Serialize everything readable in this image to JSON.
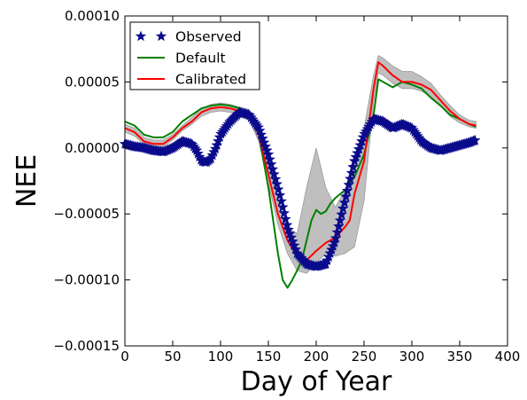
{
  "chart_data": {
    "type": "line",
    "title": "",
    "xlabel": "Day of Year",
    "ylabel": "NEE",
    "xlim": [
      0,
      400
    ],
    "ylim": [
      -0.00015,
      0.0001
    ],
    "x_ticks": [
      0,
      50,
      100,
      150,
      200,
      250,
      300,
      350,
      400
    ],
    "x_tick_labels": [
      "0",
      "50",
      "100",
      "150",
      "200",
      "250",
      "300",
      "350",
      "400"
    ],
    "y_ticks": [
      -0.00015,
      -0.0001,
      -5e-05,
      0,
      5e-05,
      0.0001
    ],
    "y_tick_labels": [
      "−0.00015",
      "−0.00010",
      "−0.00005",
      "0.00000",
      "0.00005",
      "0.00010"
    ],
    "grid": false,
    "legend": {
      "position": "top-left",
      "entries": [
        "Observed",
        "Default",
        "Calibrated"
      ]
    },
    "colors": {
      "observed": "#0a0a8c",
      "default": "#008000",
      "calibrated": "#ff0000",
      "band": "#bfbfbf",
      "band_edge": "#9a9a9a"
    },
    "series": [
      {
        "name": "Observed",
        "marker": "star",
        "x": [
          0,
          10,
          20,
          30,
          40,
          50,
          60,
          70,
          75,
          80,
          85,
          90,
          95,
          100,
          110,
          120,
          130,
          140,
          150,
          160,
          170,
          180,
          190,
          200,
          210,
          220,
          230,
          240,
          250,
          260,
          270,
          280,
          290,
          300,
          310,
          320,
          330,
          340,
          350,
          360,
          367
        ],
        "y": [
          3e-06,
          1e-06,
          0.0,
          -2e-06,
          -3e-06,
          0.0,
          5e-06,
          3e-06,
          -2e-06,
          -1e-05,
          -1.1e-05,
          -8e-06,
          0.0,
          1e-05,
          2e-05,
          2.7e-05,
          2.5e-05,
          1.5e-05,
          -5e-06,
          -3e-05,
          -6e-05,
          -8e-05,
          -8.8e-05,
          -9e-05,
          -8.8e-05,
          -7e-05,
          -4e-05,
          -1e-05,
          1e-05,
          2.2e-05,
          2e-05,
          1.5e-05,
          1.8e-05,
          1.5e-05,
          5e-06,
          0.0,
          -2e-06,
          0.0,
          2e-06,
          4e-06,
          6e-06
        ]
      },
      {
        "name": "Default",
        "x": [
          0,
          10,
          20,
          30,
          40,
          50,
          60,
          70,
          80,
          90,
          100,
          110,
          120,
          130,
          140,
          150,
          160,
          165,
          170,
          175,
          180,
          185,
          190,
          195,
          200,
          205,
          210,
          215,
          220,
          230,
          240,
          250,
          260,
          265,
          270,
          280,
          290,
          300,
          310,
          320,
          330,
          340,
          350,
          360,
          367
        ],
        "y": [
          2e-05,
          1.7e-05,
          1e-05,
          8e-06,
          8e-06,
          1.2e-05,
          2e-05,
          2.5e-05,
          3e-05,
          3.2e-05,
          3.3e-05,
          3.2e-05,
          3e-05,
          2.5e-05,
          1e-05,
          -3e-05,
          -8e-05,
          -0.0001,
          -0.000106,
          -0.0001,
          -9.3e-05,
          -8.5e-05,
          -7e-05,
          -5.5e-05,
          -4.7e-05,
          -5e-05,
          -4.8e-05,
          -4.2e-05,
          -3.8e-05,
          -3.2e-05,
          -2.2e-05,
          -5e-06,
          2.5e-05,
          5.2e-05,
          5e-05,
          4.6e-05,
          5e-05,
          4.8e-05,
          4.5e-05,
          3.8e-05,
          3.2e-05,
          2.5e-05,
          2.2e-05,
          1.8e-05,
          1.6e-05
        ]
      },
      {
        "name": "Calibrated",
        "x": [
          0,
          10,
          20,
          30,
          40,
          50,
          60,
          70,
          80,
          90,
          100,
          110,
          120,
          130,
          140,
          150,
          160,
          170,
          180,
          190,
          200,
          210,
          220,
          230,
          235,
          240,
          250,
          260,
          265,
          270,
          280,
          290,
          300,
          310,
          320,
          330,
          340,
          350,
          360,
          367
        ],
        "y": [
          1.5e-05,
          1.2e-05,
          5e-06,
          3e-06,
          3e-06,
          8e-06,
          1.5e-05,
          2e-05,
          2.7e-05,
          3e-05,
          3.1e-05,
          3e-05,
          2.8e-05,
          2.5e-05,
          1e-05,
          -2e-05,
          -5e-05,
          -7e-05,
          -8.2e-05,
          -8.5e-05,
          -7.8e-05,
          -7.2e-05,
          -6.8e-05,
          -6e-05,
          -5.5e-05,
          -3.5e-05,
          -1e-05,
          4.5e-05,
          6.5e-05,
          6.2e-05,
          5.5e-05,
          5e-05,
          5e-05,
          4.8e-05,
          4.4e-05,
          3.6e-05,
          2.8e-05,
          2.2e-05,
          1.8e-05,
          1.7e-05
        ]
      }
    ],
    "uncertainty_band": {
      "x": [
        0,
        10,
        20,
        30,
        40,
        50,
        60,
        70,
        80,
        90,
        100,
        110,
        120,
        130,
        140,
        150,
        160,
        170,
        180,
        190,
        200,
        210,
        220,
        230,
        240,
        250,
        260,
        265,
        270,
        280,
        290,
        300,
        310,
        320,
        330,
        340,
        350,
        360,
        367
      ],
      "lower": [
        1.2e-05,
        9e-06,
        3e-06,
        1e-06,
        1e-06,
        6e-06,
        1.3e-05,
        1.8e-05,
        2.4e-05,
        2.7e-05,
        2.8e-05,
        2.7e-05,
        2.5e-05,
        2.1e-05,
        5e-06,
        -2.7e-05,
        -5.8e-05,
        -8e-05,
        -9.3e-05,
        -9.5e-05,
        -8.7e-05,
        -8e-05,
        -8.2e-05,
        -8e-05,
        -7.5e-05,
        -4e-05,
        3.5e-05,
        5.7e-05,
        5.5e-05,
        4.9e-05,
        4.5e-05,
        4.5e-05,
        4.3e-05,
        3.9e-05,
        3.2e-05,
        2.4e-05,
        1.9e-05,
        1.6e-05,
        1.5e-05
      ],
      "upper": [
        1.8e-05,
        1.5e-05,
        8e-06,
        6e-06,
        6e-06,
        1e-05,
        1.7e-05,
        2.3e-05,
        3e-05,
        3.3e-05,
        3.4e-05,
        3.3e-05,
        3.1e-05,
        2.9e-05,
        1.5e-05,
        -1.2e-05,
        -4.2e-05,
        -6e-05,
        -6.5e-05,
        -3e-05,
        0.0,
        -3e-05,
        -4.5e-05,
        -3.2e-05,
        -1e-05,
        1.5e-05,
        5.5e-05,
        7e-05,
        6.8e-05,
        6.2e-05,
        5.8e-05,
        5.8e-05,
        5.4e-05,
        4.9e-05,
        4e-05,
        3.2e-05,
        2.5e-05,
        2.1e-05,
        2e-05
      ]
    }
  }
}
